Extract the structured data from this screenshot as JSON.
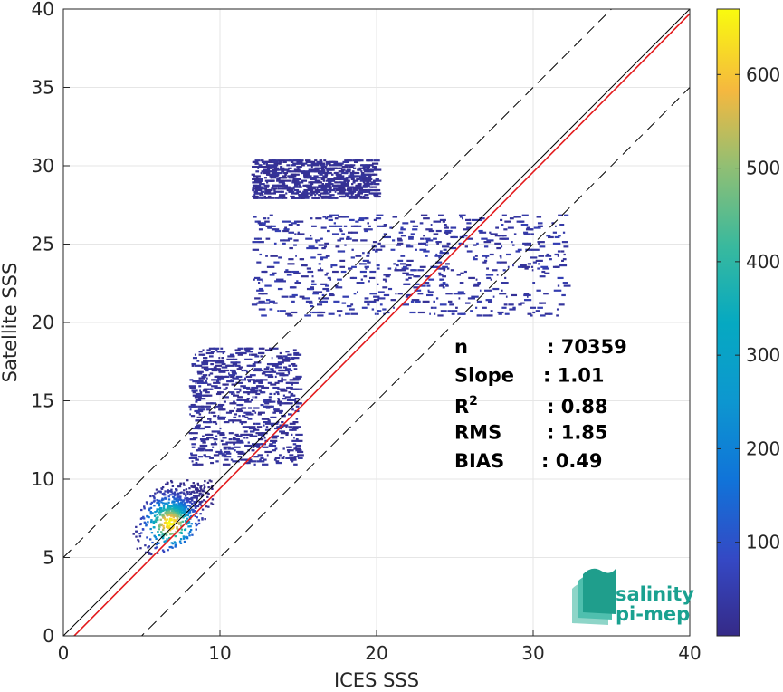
{
  "chart_data": {
    "type": "heatmap",
    "xlabel": "ICES SSS",
    "ylabel": "Satellite SSS",
    "xlim": [
      0,
      40
    ],
    "ylim": [
      0,
      40
    ],
    "xticks": [
      0,
      10,
      20,
      30,
      40
    ],
    "yticks": [
      0,
      5,
      10,
      15,
      20,
      25,
      30,
      35,
      40
    ],
    "grid": true,
    "colormap": "parula",
    "colorbar": {
      "range": [
        0,
        670
      ],
      "ticks": [
        100,
        200,
        300,
        400,
        500,
        600
      ]
    },
    "lines": [
      {
        "name": "identity",
        "style": "solid",
        "color": "#000000",
        "slope": 1.0,
        "intercept": 0.0
      },
      {
        "name": "regression",
        "style": "solid",
        "color": "#e31a1c",
        "slope": 1.01,
        "intercept": -0.7
      },
      {
        "name": "upper-bound",
        "style": "dashed",
        "color": "#000000",
        "slope": 1.0,
        "intercept": 5.0
      },
      {
        "name": "lower-bound",
        "style": "dashed",
        "color": "#000000",
        "slope": 1.0,
        "intercept": -5.0
      }
    ],
    "density_clusters": [
      {
        "x_range": [
          4,
          9.5
        ],
        "y_range": [
          4.5,
          10
        ],
        "peak": 670
      },
      {
        "x_range": [
          8,
          15
        ],
        "y_range": [
          11,
          18.5
        ],
        "peak": 40
      },
      {
        "x_range": [
          12,
          20
        ],
        "y_range": [
          28,
          30.5
        ],
        "peak": 30
      },
      {
        "x_range": [
          12,
          32
        ],
        "y_range": [
          20.5,
          27
        ],
        "peak": 60
      }
    ],
    "stats": [
      {
        "label": "n",
        "sep": ": ",
        "value": "70359"
      },
      {
        "label": "Slope",
        "sep": ": ",
        "value": "1.01"
      },
      {
        "label": "R",
        "sup": "2",
        "sep": ": ",
        "value": "0.88"
      },
      {
        "label": "RMS",
        "sep": ": ",
        "value": "1.85"
      },
      {
        "label": "BIAS",
        "sep": ": ",
        "value": "0.49"
      }
    ]
  },
  "logo": {
    "line1": "salinity",
    "line2": "pi-mep",
    "color": "#1aa190"
  }
}
